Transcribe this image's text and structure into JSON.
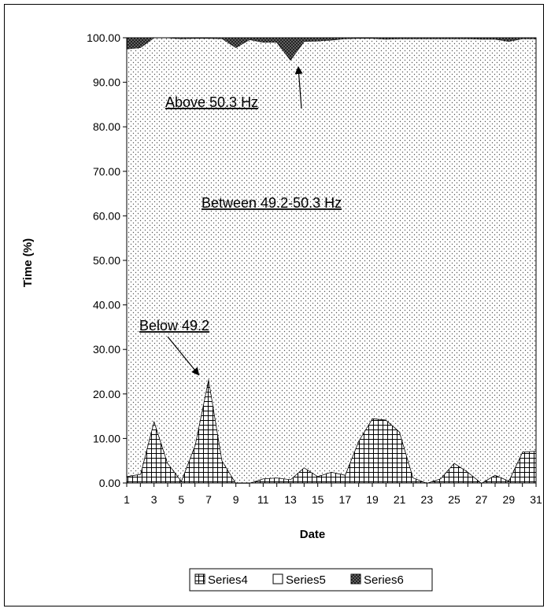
{
  "chart_data": {
    "type": "area",
    "stacked": true,
    "xlabel": "Date",
    "ylabel": "Time (%)",
    "x": [
      1,
      2,
      3,
      4,
      5,
      6,
      7,
      8,
      9,
      10,
      11,
      12,
      13,
      14,
      15,
      16,
      17,
      18,
      19,
      20,
      21,
      22,
      23,
      24,
      25,
      26,
      27,
      28,
      29,
      30,
      31
    ],
    "ylim": [
      0,
      100
    ],
    "y_ticks": [
      "0.00",
      "10.00",
      "20.00",
      "30.00",
      "40.00",
      "50.00",
      "60.00",
      "70.00",
      "80.00",
      "90.00",
      "100.00"
    ],
    "x_ticks": [
      "1",
      "3",
      "5",
      "7",
      "9",
      "11",
      "13",
      "15",
      "17",
      "19",
      "21",
      "23",
      "25",
      "27",
      "29",
      "31"
    ],
    "grid": false,
    "legend_position": "bottom",
    "series": [
      {
        "name": "Series4",
        "values": [
          1.5,
          2,
          14,
          4.5,
          0.5,
          8.5,
          23.5,
          5,
          0,
          0,
          1,
          1.2,
          0.8,
          3.5,
          1.5,
          2.5,
          1.8,
          9.5,
          14.5,
          14.2,
          11.5,
          1.2,
          0,
          1,
          4.5,
          2.5,
          0,
          1.8,
          0.5,
          7,
          7.2
        ]
      },
      {
        "name": "Series5",
        "values": [
          96,
          95.8,
          86,
          95.5,
          99.3,
          91.4,
          76.4,
          94.8,
          97.8,
          99.6,
          98,
          97.8,
          94.2,
          95.7,
          97.8,
          97,
          98,
          90.4,
          85.4,
          85.5,
          88.3,
          98.6,
          99.8,
          98.8,
          95.3,
          97.3,
          99.7,
          97.9,
          98.7,
          92.8,
          92.6
        ]
      },
      {
        "name": "Series6",
        "values": [
          2.5,
          2.2,
          0,
          0,
          0.2,
          0.1,
          0.1,
          0.2,
          2.2,
          0.4,
          1,
          1,
          5,
          0.8,
          0.7,
          0.5,
          0.2,
          0.1,
          0.1,
          0.3,
          0.2,
          0.2,
          0.2,
          0.2,
          0.2,
          0.2,
          0.3,
          0.3,
          0.8,
          0.2,
          0.2
        ]
      }
    ],
    "annotations": [
      {
        "text": "Above 50.3 Hz"
      },
      {
        "text": "Between 49.2-50.3 Hz"
      },
      {
        "text": "Below 49.2"
      }
    ]
  }
}
